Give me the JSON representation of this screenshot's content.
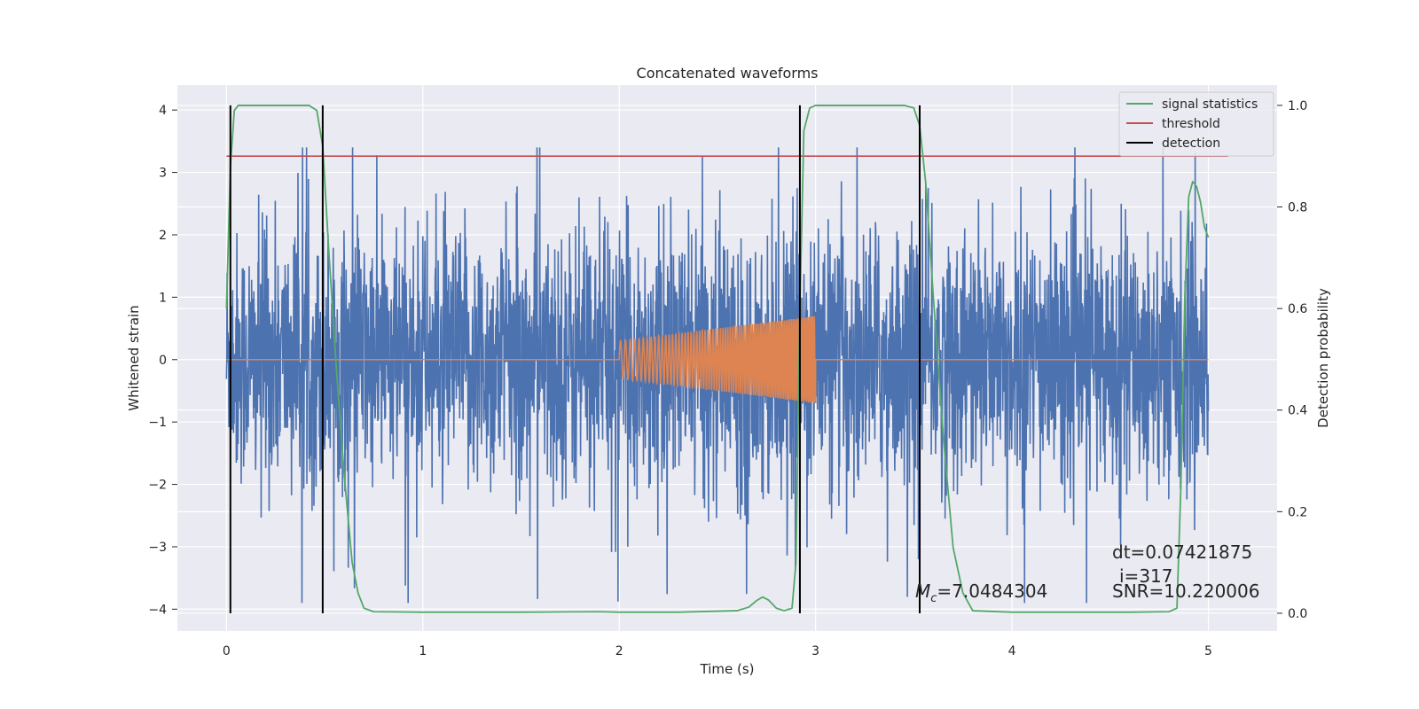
{
  "chart_data": {
    "type": "line",
    "title": "Concatenated waveforms",
    "xlabel": "Time (s)",
    "ylabel": "Whitened strain",
    "ylabel_right": "Detection probability",
    "xlim": [
      -0.25,
      5.35
    ],
    "ylim": [
      -4.35,
      4.4
    ],
    "ylim_right": [
      -0.035,
      1.04
    ],
    "xticks": [
      0,
      1,
      2,
      3,
      4,
      5
    ],
    "yticks": [
      -4,
      -3,
      -2,
      -1,
      0,
      1,
      2,
      3,
      4
    ],
    "yticks_right": [
      0.0,
      0.2,
      0.4,
      0.6,
      0.8,
      1.0
    ],
    "xtick_labels": [
      "0",
      "1",
      "2",
      "3",
      "4",
      "5"
    ],
    "ytick_labels": [
      "−4",
      "−3",
      "−2",
      "−1",
      "0",
      "1",
      "2",
      "3",
      "4"
    ],
    "ytick_right_labels": [
      "0.0",
      "0.2",
      "0.4",
      "0.6",
      "0.8",
      "1.0"
    ],
    "grid": true,
    "legend_position": "top-right",
    "legend": [
      "signal statistics",
      "threshold",
      "detection"
    ],
    "colors": {
      "noise": "#4c72b0",
      "template": "#dd8452",
      "signal_statistics": "#55a868",
      "threshold": "#c44e52",
      "detection": "#000000",
      "background": "#eaeaf2",
      "grid": "#ffffff"
    },
    "noise_series": {
      "x_range": [
        0,
        5
      ],
      "typical_amplitude": 1.0,
      "peak_range": [
        -3.9,
        3.4
      ]
    },
    "template_series": {
      "x_range": [
        0,
        5
      ],
      "chirp_start": 2.0,
      "chirp_end": 3.0,
      "amplitude_start": 0.3,
      "amplitude_end": 0.7
    },
    "signal_statistics": {
      "x": [
        0.0,
        0.02,
        0.04,
        0.06,
        0.1,
        0.2,
        0.35,
        0.42,
        0.46,
        0.49,
        0.52,
        0.56,
        0.6,
        0.64,
        0.67,
        0.7,
        0.75,
        1.0,
        1.5,
        1.9,
        2.0,
        2.3,
        2.6,
        2.66,
        2.7,
        2.73,
        2.76,
        2.8,
        2.84,
        2.88,
        2.9,
        2.92,
        2.94,
        2.97,
        3.0,
        3.1,
        3.3,
        3.45,
        3.5,
        3.53,
        3.56,
        3.6,
        3.65,
        3.7,
        3.75,
        3.8,
        4.0,
        4.3,
        4.6,
        4.8,
        4.84,
        4.86,
        4.88,
        4.9,
        4.92,
        4.94,
        4.96,
        4.98,
        5.0
      ],
      "y": [
        0.6,
        0.88,
        0.99,
        1.0,
        1.0,
        1.0,
        1.0,
        1.0,
        0.99,
        0.92,
        0.72,
        0.48,
        0.27,
        0.1,
        0.04,
        0.01,
        0.003,
        0.002,
        0.002,
        0.003,
        0.002,
        0.002,
        0.005,
        0.012,
        0.025,
        0.032,
        0.026,
        0.01,
        0.005,
        0.01,
        0.1,
        0.6,
        0.95,
        0.995,
        1.0,
        1.0,
        1.0,
        1.0,
        0.995,
        0.96,
        0.85,
        0.62,
        0.35,
        0.13,
        0.04,
        0.005,
        0.002,
        0.002,
        0.002,
        0.003,
        0.01,
        0.25,
        0.62,
        0.82,
        0.85,
        0.84,
        0.81,
        0.76,
        0.74
      ]
    },
    "threshold": 0.9,
    "threshold_x_range": [
      0,
      5.1
    ],
    "detections": [
      0.02,
      0.49,
      2.92,
      3.53
    ],
    "annotations": {
      "mc": "=7.0484304",
      "mc_symbol": "M",
      "mc_subscript": "c",
      "dt": "dt=0.07421875",
      "i": "i=317",
      "snr": "SNR=10.220006"
    }
  }
}
